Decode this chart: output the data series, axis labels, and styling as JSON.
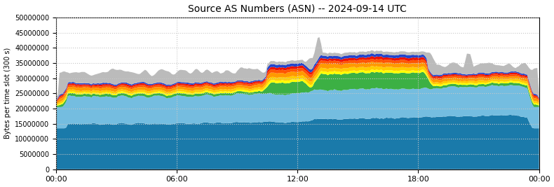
{
  "title": "Source AS Numbers (ASN) -- 2024-09-14 UTC",
  "ylabel": "Bytes per time slot (300 s)",
  "xlim": [
    0,
    288
  ],
  "ylim": [
    0,
    50000000
  ],
  "yticks": [
    0,
    5000000,
    10000000,
    15000000,
    20000000,
    25000000,
    30000000,
    35000000,
    40000000,
    45000000,
    50000000
  ],
  "xtick_positions": [
    0,
    72,
    144,
    216,
    288
  ],
  "xtick_labels": [
    "00:00",
    "06:00",
    "12:00",
    "18:00",
    "00:00"
  ],
  "colors": {
    "dark_blue": "#1a7aaa",
    "light_blue": "#74bde0",
    "green": "#3cb044",
    "yellow": "#ffff00",
    "orange_lt": "#ffcc00",
    "orange": "#ff9900",
    "dark_orange": "#ff5500",
    "red": "#ee1100",
    "blue_thin": "#2244cc",
    "gray": "#bbbbbb"
  },
  "grid_color": "#cccccc"
}
